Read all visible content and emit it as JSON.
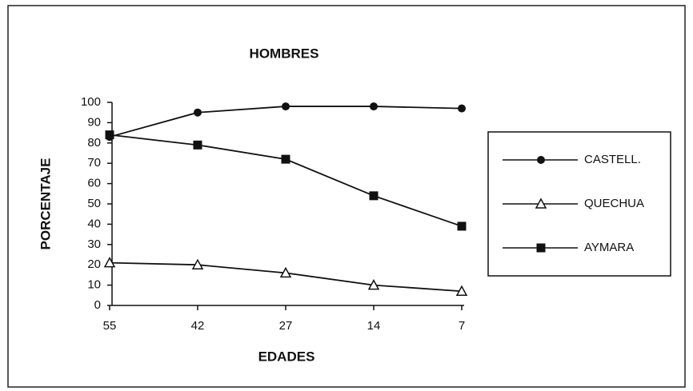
{
  "chart_data": {
    "type": "line",
    "title": "HOMBRES",
    "x_label": "EDADES",
    "y_label": "PORCENTAJE",
    "categories": [
      "55",
      "42",
      "27",
      "14",
      "7"
    ],
    "series": [
      {
        "name": "CASTELL.",
        "color": "#111111",
        "marker": "circle",
        "values": [
          83,
          95,
          98,
          98,
          97
        ]
      },
      {
        "name": "QUECHUA",
        "color": "#111111",
        "marker": "triangle",
        "values": [
          21,
          20,
          16,
          10,
          7
        ]
      },
      {
        "name": "AYMARA",
        "color": "#111111",
        "marker": "square",
        "values": [
          84,
          79,
          72,
          54,
          39
        ]
      }
    ],
    "ylim": [
      0,
      100
    ],
    "yticks": [
      0,
      10,
      20,
      30,
      40,
      50,
      60,
      70,
      80,
      90,
      100
    ],
    "grid": false,
    "legend": "right"
  }
}
